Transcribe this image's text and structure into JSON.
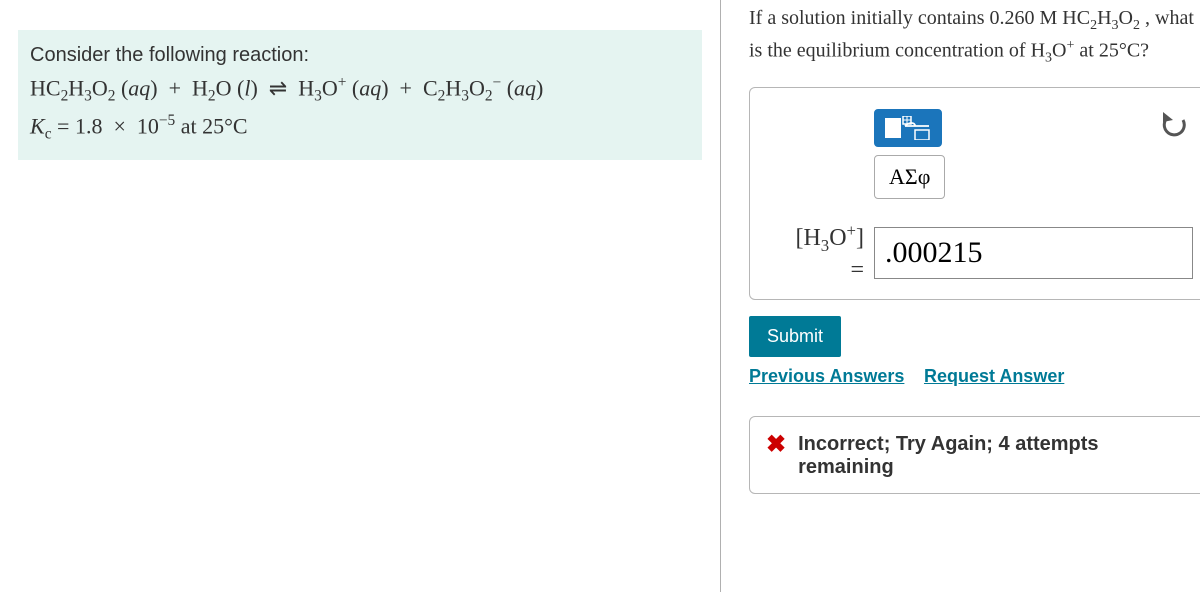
{
  "problem": {
    "intro": "Consider the following reaction:",
    "reaction_html": "HC<sub>2</sub>H<sub>3</sub>O<sub>2</sub> (<i>aq</i>) &nbsp;+&nbsp; H<sub>2</sub>O (<i>l</i>) &nbsp;<span class='eqarrow'>⇌</span>&nbsp; H<sub>3</sub>O<sup>+</sup> (<i>aq</i>) &nbsp;+&nbsp; C<sub>2</sub>H<sub>3</sub>O<sub>2</sub><sup>−</sup> (<i>aq</i>)",
    "kc_html": "<i>K</i><sub>c</sub> = 1.8 &nbsp;×&nbsp; 10<sup>−5</sup> at 25°C"
  },
  "question_html": "If a solution initially contains 0.260 M HC<sub>2</sub>H<sub>3</sub>O<sub>2</sub> , what is the equilibrium concentration of H<sub>3</sub>O<sup>+</sup> at 25°C?",
  "toolbar": {
    "keypad_icon": "keypad-icon",
    "undo_icon": "undo-icon",
    "greek_label": "ΑΣφ"
  },
  "answer": {
    "label_html": "[H<sub>3</sub>O<sup>+</sup>]<br>=",
    "value": ".000215"
  },
  "buttons": {
    "submit": "Submit",
    "previous": "Previous Answers",
    "request": "Request Answer"
  },
  "feedback": {
    "icon": "✖",
    "text": "Incorrect; Try Again; 4 attempts remaining"
  },
  "colors": {
    "accent": "#007a96",
    "box_bg": "#e5f4f1",
    "error": "#cc0000",
    "keypad_bg": "#1b75bb"
  }
}
